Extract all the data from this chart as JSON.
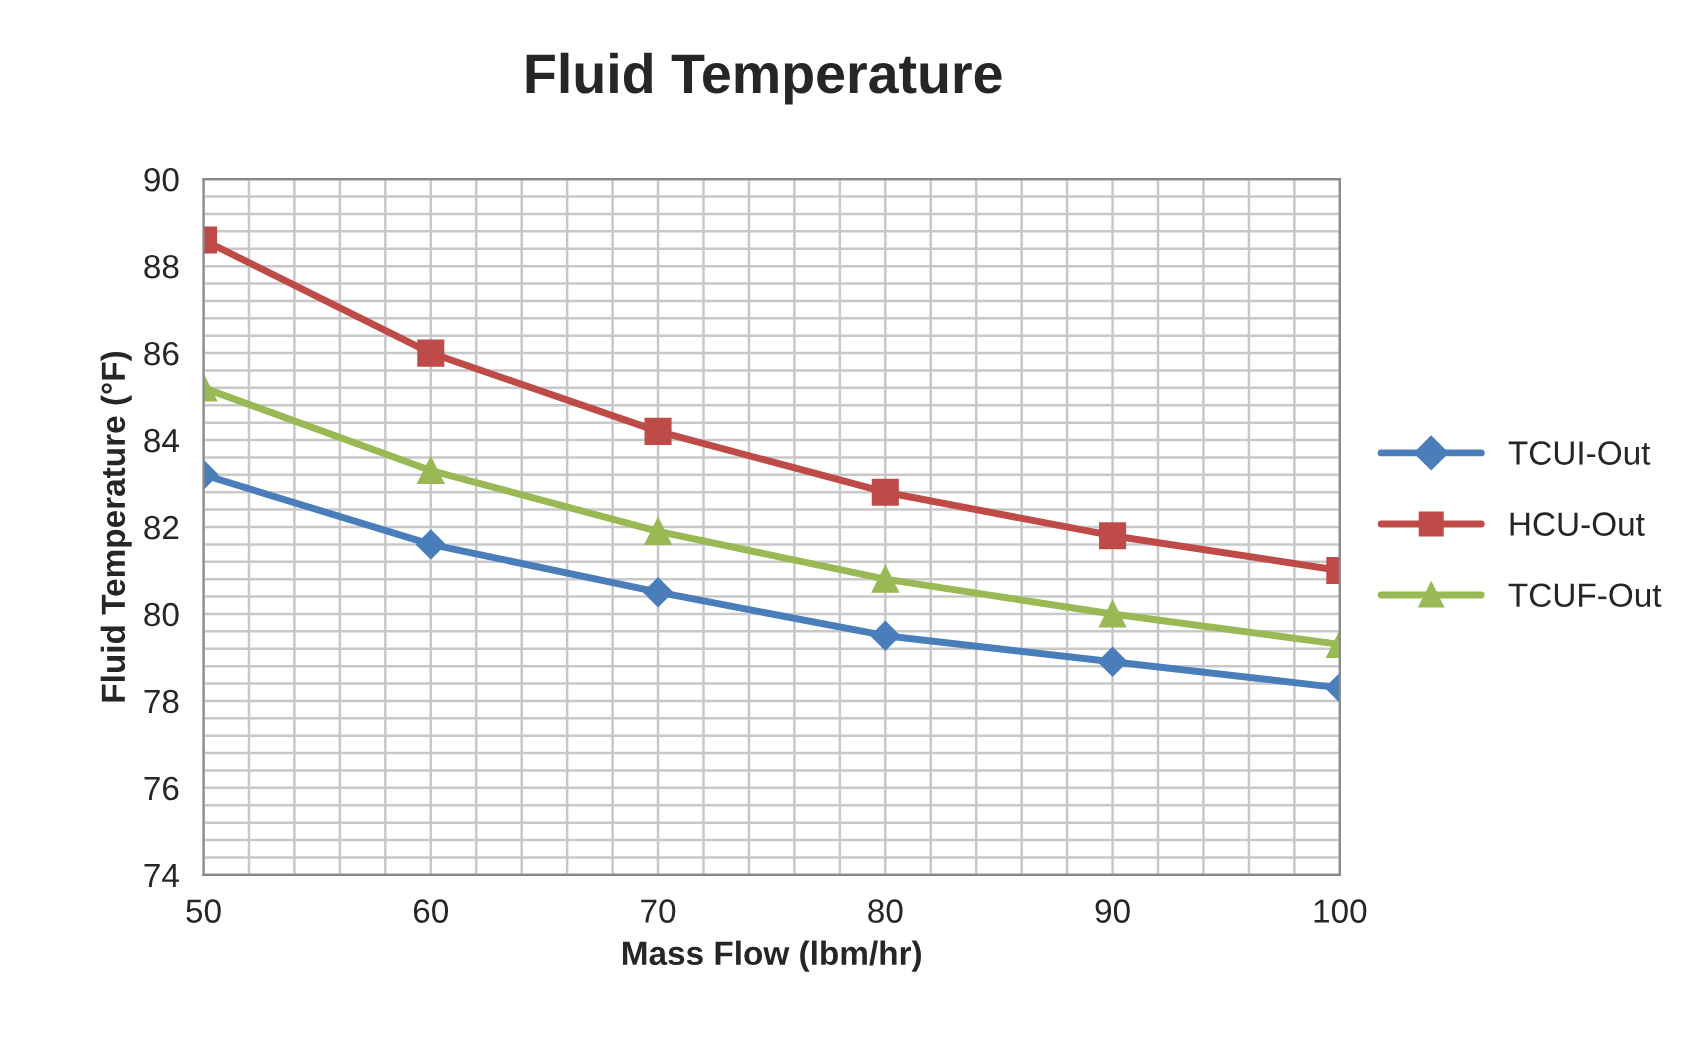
{
  "chart_data": {
    "type": "line",
    "title": "Fluid Temperature",
    "xlabel": "Mass Flow (lbm/hr)",
    "ylabel": "Fluid Temperature (°F)",
    "x": [
      50,
      60,
      70,
      80,
      90,
      100
    ],
    "series": [
      {
        "name": "TCUI-Out",
        "color": "#4a7ebb",
        "marker": "diamond",
        "values": [
          83.2,
          81.6,
          80.5,
          79.5,
          78.9,
          78.3
        ]
      },
      {
        "name": "HCU-Out",
        "color": "#be4b48",
        "marker": "square",
        "values": [
          88.6,
          86.0,
          84.2,
          82.8,
          81.8,
          81.0
        ]
      },
      {
        "name": "TCUF-Out",
        "color": "#98b954",
        "marker": "triangle",
        "values": [
          85.2,
          83.3,
          81.9,
          80.8,
          80.0,
          79.3
        ]
      }
    ],
    "xlim": [
      50,
      100
    ],
    "xticks": [
      50,
      60,
      70,
      80,
      90,
      100
    ],
    "ylim": [
      74,
      90
    ],
    "yticks": [
      74,
      76,
      78,
      80,
      82,
      84,
      86,
      88,
      90
    ],
    "grid": true,
    "legend": "right",
    "line_style": "solid"
  }
}
